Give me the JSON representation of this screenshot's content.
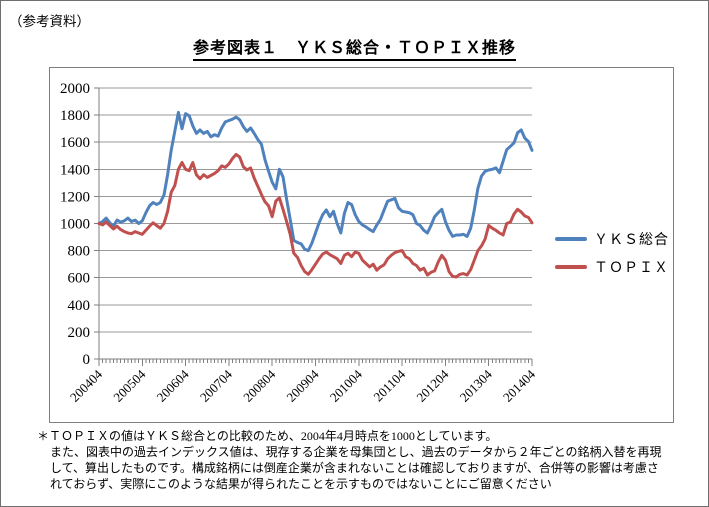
{
  "page": {
    "corner_note": "（参考資料）",
    "title": "参考図表１　ＹＫＳ総合・ＴＯＰＩＸ推移"
  },
  "chart_data": {
    "type": "line",
    "title": "参考図表１　ＹＫＳ総合・ＴＯＰＩＸ推移",
    "x_frequency": "monthly",
    "x_range": [
      "200404",
      "201404"
    ],
    "x_tick_labels": [
      "200404",
      "200504",
      "200604",
      "200704",
      "200804",
      "200904",
      "201004",
      "201104",
      "201204",
      "201304",
      "201404"
    ],
    "y_ticks": [
      0,
      200,
      400,
      600,
      800,
      1000,
      1200,
      1400,
      1600,
      1800,
      2000
    ],
    "ylim": [
      0,
      2000
    ],
    "grid": true,
    "grid_color": "#9a9a9a",
    "axis_color": "#7f7f7f",
    "legend_position": "right",
    "series": [
      {
        "name": "ＹＫＳ総合",
        "color": "#4f81bd",
        "values": [
          1000,
          1015,
          1040,
          1005,
          980,
          1025,
          1010,
          1020,
          1040,
          1015,
          1025,
          1000,
          1020,
          1080,
          1130,
          1155,
          1140,
          1155,
          1210,
          1360,
          1540,
          1680,
          1820,
          1700,
          1810,
          1795,
          1720,
          1665,
          1690,
          1665,
          1680,
          1640,
          1655,
          1645,
          1705,
          1750,
          1760,
          1770,
          1785,
          1765,
          1715,
          1680,
          1705,
          1665,
          1620,
          1585,
          1470,
          1385,
          1305,
          1255,
          1400,
          1345,
          1180,
          1030,
          875,
          860,
          850,
          810,
          800,
          855,
          930,
          1005,
          1065,
          1100,
          1050,
          1090,
          1000,
          930,
          1075,
          1155,
          1140,
          1065,
          1015,
          990,
          975,
          955,
          940,
          990,
          1030,
          1100,
          1165,
          1175,
          1185,
          1115,
          1090,
          1085,
          1080,
          1065,
          1000,
          985,
          950,
          930,
          985,
          1050,
          1080,
          1105,
          1015,
          950,
          905,
          915,
          915,
          920,
          905,
          965,
          1100,
          1260,
          1350,
          1385,
          1395,
          1400,
          1410,
          1375,
          1460,
          1545,
          1570,
          1595,
          1670,
          1690,
          1630,
          1605,
          1540
        ]
      },
      {
        "name": "ＴＯＰＩＸ",
        "color": "#c0504d",
        "values": [
          1000,
          990,
          1010,
          985,
          960,
          980,
          955,
          940,
          930,
          925,
          940,
          930,
          920,
          950,
          980,
          1005,
          985,
          965,
          1000,
          1090,
          1230,
          1280,
          1400,
          1450,
          1400,
          1390,
          1450,
          1360,
          1330,
          1360,
          1340,
          1355,
          1370,
          1390,
          1425,
          1415,
          1440,
          1480,
          1510,
          1490,
          1420,
          1395,
          1410,
          1335,
          1275,
          1215,
          1160,
          1130,
          1050,
          1165,
          1190,
          1105,
          1015,
          920,
          780,
          750,
          690,
          645,
          625,
          660,
          700,
          740,
          775,
          790,
          770,
          755,
          740,
          705,
          765,
          780,
          755,
          790,
          780,
          730,
          705,
          680,
          700,
          655,
          680,
          695,
          740,
          765,
          785,
          795,
          800,
          755,
          740,
          705,
          690,
          655,
          670,
          620,
          640,
          650,
          715,
          765,
          730,
          645,
          610,
          605,
          625,
          630,
          620,
          660,
          730,
          800,
          835,
          885,
          985,
          965,
          950,
          930,
          915,
          1000,
          1010,
          1070,
          1105,
          1085,
          1055,
          1045,
          1005
        ]
      }
    ]
  },
  "footnote": {
    "lines": [
      "＊ＴＯＰＩＸの値はＹＫＳ総合との比較のため、2004年4月時点を1000としています。",
      "また、図表中の過去インデックス値は、現存する企業を母集団とし、過去のデータから２年ごとの銘柄入替を再現",
      "して、算出したものです。構成銘柄には倒産企業が含まれないことは確認しておりますが、合併等の影響は考慮さ",
      "れておらず、実際にこのような結果が得られたことを示すものではないことにご留意ください"
    ]
  }
}
